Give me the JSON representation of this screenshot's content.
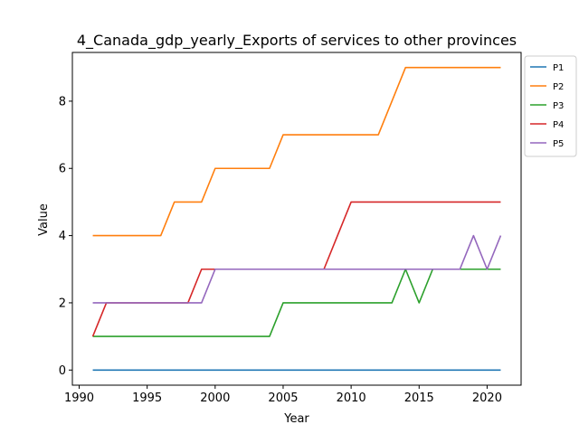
{
  "chart_data": {
    "type": "line",
    "title": "4_Canada_gdp_yearly_Exports of services to other provinces",
    "xlabel": "Year",
    "ylabel": "Value",
    "xlim": [
      1989.5,
      2022.5
    ],
    "ylim": [
      -0.45,
      9.45
    ],
    "xticks": [
      1990,
      1995,
      2000,
      2005,
      2010,
      2015,
      2020
    ],
    "yticks": [
      0,
      2,
      4,
      6,
      8
    ],
    "grid": false,
    "legend_position": "outside-top-right",
    "x": [
      1991,
      1992,
      1993,
      1994,
      1995,
      1996,
      1997,
      1998,
      1999,
      2000,
      2001,
      2002,
      2003,
      2004,
      2005,
      2006,
      2007,
      2008,
      2009,
      2010,
      2011,
      2012,
      2013,
      2014,
      2015,
      2016,
      2017,
      2018,
      2019,
      2020,
      2021
    ],
    "series": [
      {
        "name": "P1",
        "color": "#1f77b4",
        "values": [
          0,
          0,
          0,
          0,
          0,
          0,
          0,
          0,
          0,
          0,
          0,
          0,
          0,
          0,
          0,
          0,
          0,
          0,
          0,
          0,
          0,
          0,
          0,
          0,
          0,
          0,
          0,
          0,
          0,
          0,
          0
        ]
      },
      {
        "name": "P2",
        "color": "#ff7f0e",
        "values": [
          4,
          4,
          4,
          4,
          4,
          4,
          5,
          5,
          5,
          6,
          6,
          6,
          6,
          6,
          7,
          7,
          7,
          7,
          7,
          7,
          7,
          7,
          8,
          9,
          9,
          9,
          9,
          9,
          9,
          9,
          9
        ]
      },
      {
        "name": "P3",
        "color": "#2ca02c",
        "values": [
          1,
          1,
          1,
          1,
          1,
          1,
          1,
          1,
          1,
          1,
          1,
          1,
          1,
          1,
          2,
          2,
          2,
          2,
          2,
          2,
          2,
          2,
          2,
          3,
          2,
          3,
          3,
          3,
          3,
          3,
          3
        ]
      },
      {
        "name": "P4",
        "color": "#d62728",
        "values": [
          1,
          2,
          2,
          2,
          2,
          2,
          2,
          2,
          3,
          3,
          3,
          3,
          3,
          3,
          3,
          3,
          3,
          3,
          4,
          5,
          5,
          5,
          5,
          5,
          5,
          5,
          5,
          5,
          5,
          5,
          5
        ]
      },
      {
        "name": "P5",
        "color": "#9467bd",
        "values": [
          2,
          2,
          2,
          2,
          2,
          2,
          2,
          2,
          2,
          3,
          3,
          3,
          3,
          3,
          3,
          3,
          3,
          3,
          3,
          3,
          3,
          3,
          3,
          3,
          3,
          3,
          3,
          3,
          4,
          3,
          4
        ]
      }
    ]
  }
}
